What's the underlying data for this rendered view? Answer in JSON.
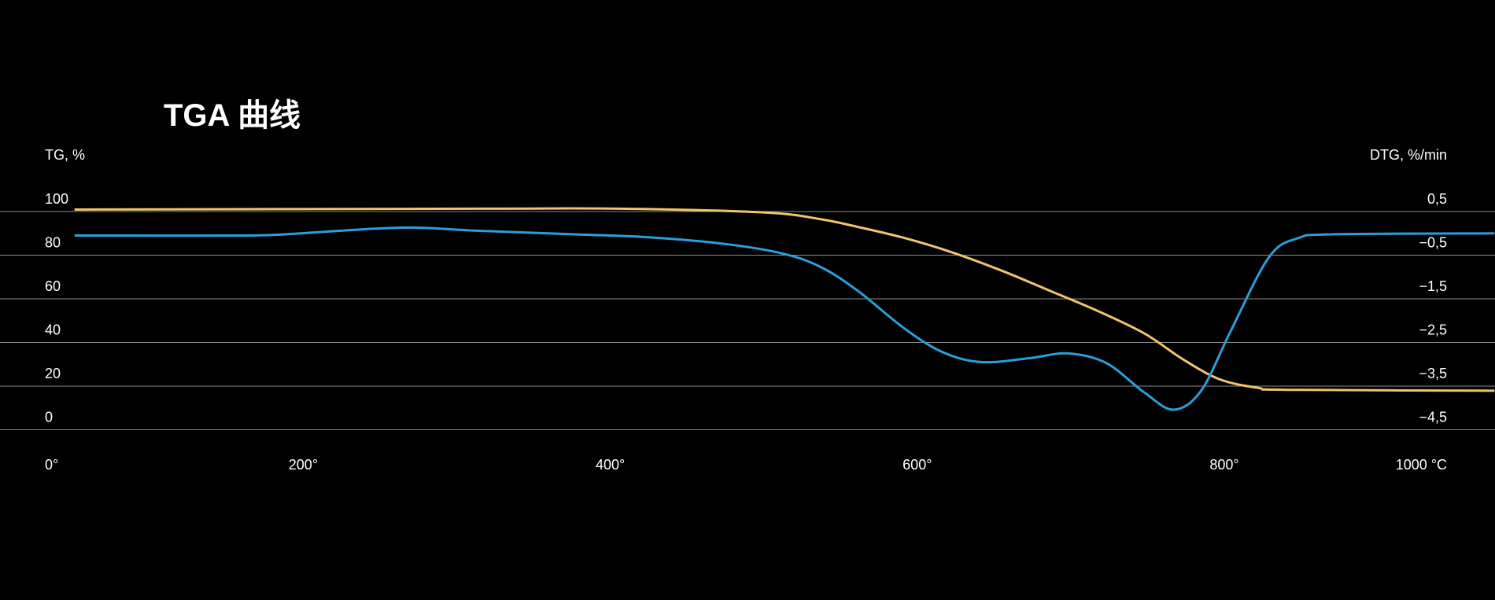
{
  "chart_data": {
    "type": "line",
    "title": "TGA 曲线",
    "ylabel": "TG, %",
    "y2label": "DTG, %/min",
    "xlim": [
      0,
      1000
    ],
    "xticks": [
      {
        "value": 0,
        "label": "0°"
      },
      {
        "value": 200,
        "label": "200°"
      },
      {
        "value": 400,
        "label": "400°"
      },
      {
        "value": 600,
        "label": "600°"
      },
      {
        "value": 800,
        "label": "800°"
      },
      {
        "value": 1000,
        "label": "1000 °C"
      }
    ],
    "ylim": [
      0,
      100
    ],
    "yticks": [
      0,
      20,
      40,
      60,
      80,
      100
    ],
    "y2lim": [
      -4.5,
      0.5
    ],
    "y2ticks": [
      {
        "value": -4.5,
        "label": "−4,5"
      },
      {
        "value": -3.5,
        "label": "−3,5"
      },
      {
        "value": -2.5,
        "label": "−2,5"
      },
      {
        "value": -1.5,
        "label": "−1,5"
      },
      {
        "value": -0.5,
        "label": "−0,5"
      },
      {
        "value": 0.5,
        "label": "0,5"
      }
    ],
    "grid": true,
    "series": [
      {
        "name": "TG",
        "color": "#f2c46d",
        "x": [
          51,
          313,
          406,
          500,
          537,
          561,
          592,
          623,
          655,
          686,
          717,
          748,
          773,
          797,
          822,
          841,
          976
        ],
        "values": [
          100.9,
          101.3,
          101.3,
          99.6,
          96.5,
          93,
          87.8,
          81.2,
          72.9,
          63.8,
          54.6,
          44.1,
          32.3,
          23.1,
          19.2,
          18.3,
          17.9
        ]
      },
      {
        "name": "DTG",
        "color": "#2a9fd8",
        "axis": "y2",
        "x": [
          51,
          158,
          189,
          263,
          313,
          375,
          425,
          474,
          512,
          537,
          561,
          592,
          617,
          642,
          673,
          698,
          723,
          748,
          767,
          785,
          804,
          829,
          848,
          872,
          976
        ],
        "values": [
          -0.05,
          -0.05,
          -0.02,
          0.13,
          0.06,
          -0.02,
          -0.09,
          -0.24,
          -0.46,
          -0.77,
          -1.31,
          -2.19,
          -2.73,
          -2.95,
          -2.86,
          -2.75,
          -2.97,
          -3.65,
          -4.04,
          -3.6,
          -2.25,
          -0.55,
          -0.11,
          -0.02,
          0.0
        ]
      }
    ]
  }
}
